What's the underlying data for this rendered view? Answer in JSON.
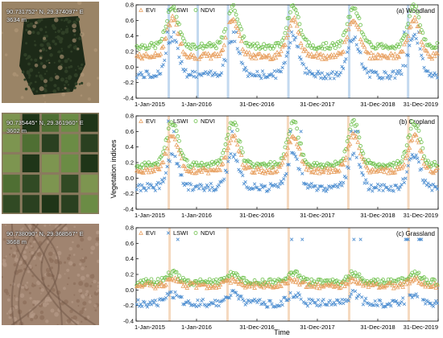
{
  "photos": [
    {
      "label_line1": "90.731752° N, 29.374097° E",
      "label_line2": "3634 m",
      "base": "#9a8466",
      "patch": "#1d2a18",
      "patch2": "#2f3f26",
      "alt": "#b49a7a"
    },
    {
      "label_line1": "90.735445° N, 29.361960° E",
      "label_line2": "3602 m",
      "base": "#8a7a5e",
      "patch": "#314a24",
      "patch2": "#6b8c45",
      "alt": "#1f3518"
    },
    {
      "label_line1": "90.738090° N, 29.368567° E",
      "label_line2": "3668 m",
      "base": "#a08470",
      "patch": "#8c6d5a",
      "patch2": "#b59a88",
      "alt": "#6e5444"
    }
  ],
  "colors": {
    "evi": "#e8a060",
    "lswi": "#4f8fd1",
    "ndvi": "#6cc04a",
    "band_blue": "#b8d2ec",
    "band_orange": "#f3d2b4"
  },
  "chart_data": [
    {
      "type": "scatter",
      "title": "(a) Woodland",
      "xlabel": "Time",
      "ylabel": "Vegetation indices",
      "ylim": [
        -0.4,
        0.8
      ],
      "yticks": [
        -0.4,
        -0.2,
        0.0,
        0.2,
        0.4,
        0.6,
        0.8
      ],
      "xticks": [
        "1-Jan-2015",
        "1-Jan-2016",
        "31-Dec-2016",
        "31-Dec-2017",
        "31-Dec-2018",
        "31-Dec-2019"
      ],
      "legend": [
        "EVI",
        "LSWI",
        "NDVI"
      ],
      "band_color": "blue",
      "bands_days": [
        [
          190,
          202
        ],
        [
          365,
          378
        ],
        [
          548,
          560
        ],
        [
          913,
          925
        ],
        [
          1280,
          1292
        ],
        [
          1636,
          1646
        ]
      ],
      "gaps_days": [
        [
          366,
          378
        ],
        [
          548,
          560
        ]
      ],
      "profile": {
        "ndvi": {
          "winter": 0.27,
          "summer": 0.78,
          "spike": 0.82
        },
        "evi": {
          "winter": 0.14,
          "summer": 0.62,
          "spike": 0.7
        },
        "lswi": {
          "winter": -0.1,
          "summer": 0.38,
          "spike": 0.45
        }
      }
    },
    {
      "type": "scatter",
      "title": "(b) Cropland",
      "xlabel": "Time",
      "ylabel": "Vegetation indices",
      "ylim": [
        -0.4,
        0.8
      ],
      "yticks": [
        -0.4,
        -0.2,
        0.0,
        0.2,
        0.4,
        0.6,
        0.8
      ],
      "xticks": [
        "1-Jan-2015",
        "1-Jan-2016",
        "31-Dec-2016",
        "31-Dec-2017",
        "31-Dec-2018",
        "31-Dec-2019"
      ],
      "legend": [
        "EVI",
        "LSWI",
        "NDVI"
      ],
      "band_color": "orange",
      "bands_days": [
        [
          190,
          200
        ],
        [
          545,
          555
        ],
        [
          910,
          920
        ],
        [
          1275,
          1285
        ],
        [
          1638,
          1648
        ]
      ],
      "gaps_days": [],
      "profile": {
        "ndvi": {
          "winter": 0.17,
          "summer": 0.72,
          "spike": 0.82
        },
        "evi": {
          "winter": 0.1,
          "summer": 0.55,
          "spike": 0.6
        },
        "lswi": {
          "winter": -0.12,
          "summer": 0.3,
          "spike": 0.6
        }
      }
    },
    {
      "type": "scatter",
      "title": "(c) Grassland",
      "xlabel": "Time",
      "ylabel": "Vegetation indices",
      "ylim": [
        -0.4,
        0.8
      ],
      "yticks": [
        -0.4,
        -0.2,
        0.0,
        0.2,
        0.4,
        0.6,
        0.8
      ],
      "xticks": [
        "1-Jan-2015",
        "1-Jan-2016",
        "31-Dec-2016",
        "31-Dec-2017",
        "31-Dec-2018",
        "31-Dec-2019"
      ],
      "legend": [
        "EVI",
        "LSWI",
        "NDVI"
      ],
      "band_color": "orange",
      "bands_days": [
        [
          195,
          205
        ],
        [
          545,
          555
        ],
        [
          915,
          925
        ],
        [
          1280,
          1290
        ],
        [
          1640,
          1650
        ]
      ],
      "gaps_days": [],
      "profile": {
        "ndvi": {
          "winter": 0.1,
          "summer": 0.22,
          "spike": 0.25
        },
        "evi": {
          "winter": 0.06,
          "summer": 0.13,
          "spike": 0.15
        },
        "lswi": {
          "winter": -0.17,
          "summer": -0.05,
          "spike": 0.65
        }
      }
    }
  ]
}
